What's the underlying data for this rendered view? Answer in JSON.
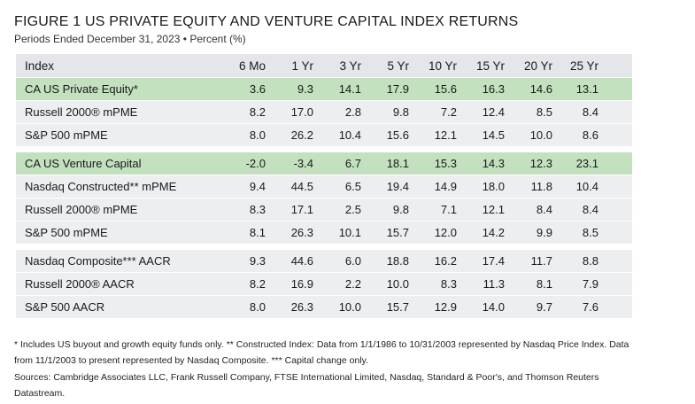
{
  "title": "FIGURE 1  US PRIVATE EQUITY AND VENTURE CAPITAL INDEX RETURNS",
  "subtitle": "Periods Ended December 31, 2023 • Percent (%)",
  "headers": [
    "Index",
    "6 Mo",
    "1 Yr",
    "3 Yr",
    "5 Yr",
    "10 Yr",
    "15 Yr",
    "20 Yr",
    "25 Yr"
  ],
  "groups": [
    [
      {
        "label": "CA US Private Equity*",
        "values": [
          "3.6",
          "9.3",
          "14.1",
          "17.9",
          "15.6",
          "16.3",
          "14.6",
          "13.1"
        ],
        "style": "green"
      },
      {
        "label": "Russell 2000® mPME",
        "values": [
          "8.2",
          "17.0",
          "2.8",
          "9.8",
          "7.2",
          "12.4",
          "8.5",
          "8.4"
        ],
        "style": "gray"
      },
      {
        "label": "S&P 500 mPME",
        "values": [
          "8.0",
          "26.2",
          "10.4",
          "15.6",
          "12.1",
          "14.5",
          "10.0",
          "8.6"
        ],
        "style": "gray"
      }
    ],
    [
      {
        "label": "CA US Venture Capital",
        "values": [
          "-2.0",
          "-3.4",
          "6.7",
          "18.1",
          "15.3",
          "14.3",
          "12.3",
          "23.1"
        ],
        "style": "green"
      },
      {
        "label": "Nasdaq Constructed** mPME",
        "values": [
          "9.4",
          "44.5",
          "6.5",
          "19.4",
          "14.9",
          "18.0",
          "11.8",
          "10.4"
        ],
        "style": "gray"
      },
      {
        "label": "Russell 2000® mPME",
        "values": [
          "8.3",
          "17.1",
          "2.5",
          "9.8",
          "7.1",
          "12.1",
          "8.4",
          "8.4"
        ],
        "style": "gray"
      },
      {
        "label": "S&P 500 mPME",
        "values": [
          "8.1",
          "26.3",
          "10.1",
          "15.7",
          "12.0",
          "14.2",
          "9.9",
          "8.5"
        ],
        "style": "gray"
      }
    ],
    [
      {
        "label": "Nasdaq Composite*** AACR",
        "values": [
          "9.3",
          "44.6",
          "6.0",
          "18.8",
          "16.2",
          "17.4",
          "11.7",
          "8.8"
        ],
        "style": "gray"
      },
      {
        "label": "Russell 2000® AACR",
        "values": [
          "8.2",
          "16.9",
          "2.2",
          "10.0",
          "8.3",
          "11.3",
          "8.1",
          "7.9"
        ],
        "style": "gray"
      },
      {
        "label": "S&P 500 AACR",
        "values": [
          "8.0",
          "26.3",
          "10.0",
          "15.7",
          "12.9",
          "14.0",
          "9.7",
          "7.6"
        ],
        "style": "gray"
      }
    ]
  ],
  "footnote": "* Includes US buyout and growth equity funds only. ** Constructed Index: Data from 1/1/1986 to 10/31/2003 represented by Nasdaq Price Index. Data from 11/1/2003 to present represented by Nasdaq Composite. *** Capital change only.",
  "sources": "Sources: Cambridge Associates LLC, Frank Russell Company, FTSE International Limited, Nasdaq, Standard & Poor's, and Thomson Reuters Datastream."
}
